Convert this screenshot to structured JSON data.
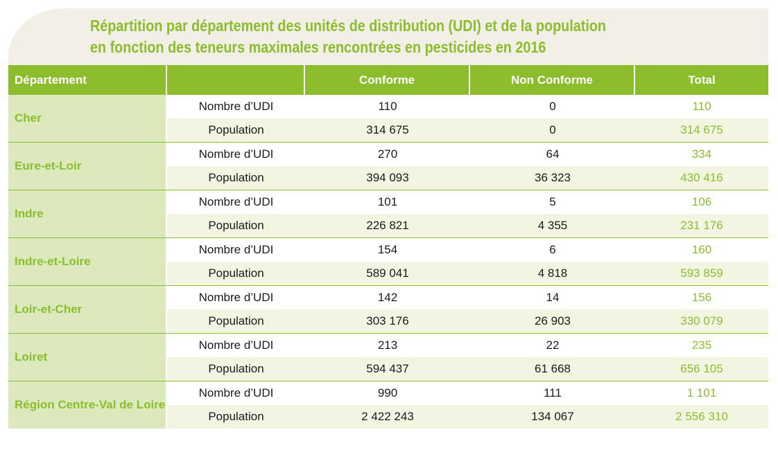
{
  "title": {
    "line1": "Répartition par département des unités de distribution (UDI) et de la population",
    "line2": "en fonction des teneurs maximales rencontrées en pesticides en 2016"
  },
  "headers": {
    "departement": "Département",
    "blank": "",
    "conforme": "Conforme",
    "non_conforme": "Non Conforme",
    "total": "Total"
  },
  "groups": [
    {
      "name": "Cher",
      "rows": [
        {
          "label": "Nombre d’UDI",
          "conforme": "110",
          "non_conforme": "0",
          "total": "110"
        },
        {
          "label": "Population",
          "conforme": "314 675",
          "non_conforme": "0",
          "total": "314 675"
        }
      ]
    },
    {
      "name": "Eure-et-Loir",
      "rows": [
        {
          "label": "Nombre d’UDI",
          "conforme": "270",
          "non_conforme": "64",
          "total": "334"
        },
        {
          "label": "Population",
          "conforme": "394 093",
          "non_conforme": "36 323",
          "total": "430 416"
        }
      ]
    },
    {
      "name": "Indre",
      "rows": [
        {
          "label": "Nombre d’UDI",
          "conforme": "101",
          "non_conforme": "5",
          "total": "106"
        },
        {
          "label": "Population",
          "conforme": "226 821",
          "non_conforme": "4 355",
          "total": "231 176"
        }
      ]
    },
    {
      "name": "Indre-et-Loire",
      "rows": [
        {
          "label": "Nombre d’UDI",
          "conforme": "154",
          "non_conforme": "6",
          "total": "160"
        },
        {
          "label": "Population",
          "conforme": "589 041",
          "non_conforme": "4 818",
          "total": "593 859"
        }
      ]
    },
    {
      "name": "Loir-et-Cher",
      "rows": [
        {
          "label": "Nombre d’UDI",
          "conforme": "142",
          "non_conforme": "14",
          "total": "156"
        },
        {
          "label": "Population",
          "conforme": "303 176",
          "non_conforme": "26 903",
          "total": "330 079"
        }
      ]
    },
    {
      "name": "Loiret",
      "rows": [
        {
          "label": "Nombre d’UDI",
          "conforme": "213",
          "non_conforme": "22",
          "total": "235"
        },
        {
          "label": "Population",
          "conforme": "594 437",
          "non_conforme": "61 668",
          "total": "656 105"
        }
      ]
    },
    {
      "name": "Région Centre-Val de Loire",
      "rows": [
        {
          "label": "Nombre d’UDI",
          "conforme": "990",
          "non_conforme": "111",
          "total": "1 101"
        },
        {
          "label": "Population",
          "conforme": "2 422 243",
          "non_conforme": "134 067",
          "total": "2 556 310"
        }
      ]
    }
  ],
  "colors": {
    "accent": "#8cbd2d",
    "dept_bg": "#dbe9bd",
    "alt_row_bg": "#f1f5e2",
    "banner_bg": "#f1efe6"
  }
}
